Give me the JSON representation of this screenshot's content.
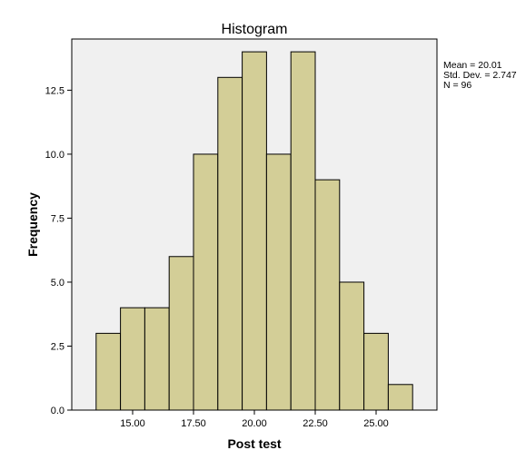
{
  "chart_data": {
    "type": "bar",
    "title": "Histogram",
    "xlabel": "Post test",
    "ylabel": "Frequency",
    "bin_width": 1,
    "bin_centers": [
      14,
      15,
      16,
      17,
      18,
      19,
      20,
      21,
      22,
      23,
      24,
      25,
      26
    ],
    "values": [
      3,
      4,
      4,
      6,
      10,
      13,
      14,
      10,
      14,
      9,
      5,
      3,
      1
    ],
    "xlim": [
      12.5,
      27.5
    ],
    "ylim": [
      0,
      14.5
    ],
    "x_ticks": [
      15,
      17.5,
      20,
      22.5,
      25
    ],
    "x_tick_labels": [
      "15.00",
      "17.50",
      "20.00",
      "22.50",
      "25.00"
    ],
    "y_ticks": [
      0,
      2.5,
      5,
      7.5,
      10,
      12.5
    ],
    "y_tick_labels": [
      "0.0",
      "2.5",
      "5.0",
      "7.5",
      "10.0",
      "12.5"
    ],
    "grid": false,
    "legend_placement": "right",
    "stats": [
      "Mean = 20.01",
      "Std. Dev. = 2.747",
      "N = 96"
    ],
    "colors": {
      "bar_fill": "#D3CE97",
      "bar_stroke": "#000000",
      "plot_background": "#F0F0F0",
      "page_background": "#FFFFFF"
    }
  }
}
